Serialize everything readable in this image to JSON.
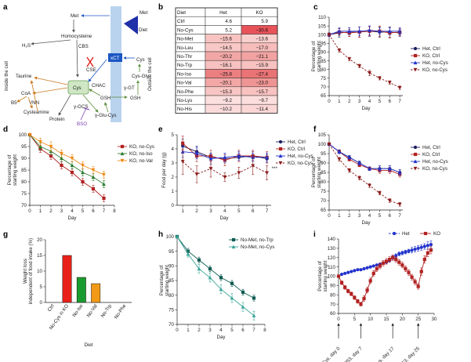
{
  "panel_letters": [
    "a",
    "b",
    "c",
    "d",
    "e",
    "f",
    "g",
    "h",
    "i"
  ],
  "diagram_a": {
    "side_inside": "Inside the cell",
    "side_outside": "Outside the cell",
    "nodes": {
      "met": "Met",
      "diet": "Diet",
      "met_out": "Met",
      "homocysteine": "Homocysteine",
      "cbs": "CBS",
      "h2s": "H₂S",
      "xct": "xCT",
      "cse": "CSE",
      "cys_out": "Cys",
      "cys_gly": "Cys-Gly",
      "taurine": "Taurine",
      "chac": "CHAC",
      "cys": "Cys",
      "gamma_gt": "γ-GT",
      "coa": "CoA",
      "b5": "B5",
      "vnn": "VNN",
      "gsh": "GSH",
      "gsh_out": "GSH",
      "cysteamine": "Cysteamine",
      "gamma_gcs": "γ-GCS",
      "protein": "Protein",
      "bso": "BSO",
      "glu_cys": "γ-Glu-Cys"
    }
  },
  "table_b": {
    "headers": [
      "Diet",
      "Het",
      "KO"
    ],
    "rows": [
      {
        "diet": "Ctrl",
        "het": "4.6",
        "ko": "5.9",
        "het_color": "#ffffff",
        "ko_color": "#ffffff"
      },
      {
        "diet": "No-Cys",
        "het": "5.2",
        "ko": "−30.6",
        "het_color": "#ffffff",
        "ko_color": "#e8535a"
      },
      {
        "diet": "No-Met",
        "het": "−15.6",
        "ko": "−13.6",
        "het_color": "#f7c4c2",
        "ko_color": "#f9d0ce"
      },
      {
        "diet": "No-Leu",
        "het": "−14.5",
        "ko": "−17.0",
        "het_color": "#f8c8c6",
        "ko_color": "#f6bdbb"
      },
      {
        "diet": "No-Thr",
        "het": "−20.2",
        "ko": "−21.1",
        "het_color": "#f2a7a6",
        "ko_color": "#f1a2a1"
      },
      {
        "diet": "No-Trp",
        "het": "−16.1",
        "ko": "−15.9",
        "het_color": "#f6c1bf",
        "ko_color": "#f7c2c0"
      },
      {
        "diet": "No-Iso",
        "het": "−25.8",
        "ko": "−27.4",
        "het_color": "#ec7f80",
        "ko_color": "#ea7375"
      },
      {
        "diet": "No-Val",
        "het": "−20.1",
        "ko": "−23.0",
        "het_color": "#f2a7a6",
        "ko_color": "#ef9494"
      },
      {
        "diet": "No-Phe",
        "het": "−15.3",
        "ko": "−15.7",
        "het_color": "#f7c5c3",
        "ko_color": "#f7c2c0"
      },
      {
        "diet": "No-Lys",
        "het": "−9.2",
        "ko": "−9.7",
        "het_color": "#fbe0df",
        "ko_color": "#fbdedd"
      },
      {
        "diet": "No-His",
        "het": "−10.2",
        "ko": "−11.4",
        "het_color": "#fbdbda",
        "ko_color": "#fad6d5"
      }
    ]
  },
  "chart_data": [
    {
      "id": "c",
      "type": "line",
      "xlabel": "Day",
      "ylabel": "Percentage of starting weight",
      "xlim": [
        0,
        7.3
      ],
      "ylim": [
        65,
        110
      ],
      "xticks": [
        0,
        1,
        2,
        3,
        4,
        5,
        6,
        7
      ],
      "yticks": [
        65,
        70,
        75,
        80,
        85,
        90,
        95,
        100,
        105,
        110
      ],
      "x": [
        0,
        1,
        2,
        3,
        4,
        5,
        6,
        7
      ],
      "series": [
        {
          "name": "Het, Ctrl",
          "color": "#1c1f5e",
          "marker": "circle",
          "dash": false,
          "values": [
            100,
            101,
            101.5,
            101.5,
            102,
            101.5,
            101.5,
            101
          ],
          "err": [
            1,
            2.5,
            2.5,
            3,
            3,
            3,
            3,
            2
          ]
        },
        {
          "name": "KO, Ctrl",
          "color": "#b22222",
          "marker": "square",
          "dash": false,
          "values": [
            100,
            101.5,
            101,
            101.5,
            102,
            102,
            101,
            101.5
          ],
          "err": [
            1,
            2,
            2,
            3,
            2.5,
            3,
            3,
            2
          ]
        },
        {
          "name": "Het, no-Cys",
          "color": "#2233cc",
          "marker": "triangle",
          "dash": false,
          "values": [
            100,
            102,
            102,
            102,
            102.5,
            102,
            102,
            102
          ],
          "err": [
            1,
            2,
            2,
            2.5,
            2.5,
            2,
            2,
            2
          ]
        },
        {
          "name": "KO, no-Cys",
          "color": "#8b1a1a",
          "marker": "triangle-down",
          "dash": true,
          "values": [
            100,
            91,
            86,
            82,
            78,
            75,
            72.5,
            69.5
          ],
          "err": [
            0.5,
            1,
            1,
            1,
            1.5,
            1,
            1,
            1
          ]
        }
      ],
      "legend": "right"
    },
    {
      "id": "d",
      "type": "line",
      "xlabel": "Day",
      "ylabel": "Percentage of starting weight",
      "xlim": [
        0,
        8
      ],
      "ylim": [
        70,
        100
      ],
      "xticks": [
        0,
        1,
        2,
        3,
        4,
        5,
        6,
        7,
        8
      ],
      "yticks": [
        70,
        75,
        80,
        85,
        90,
        95,
        100
      ],
      "x": [
        0,
        1,
        2,
        3,
        4,
        5,
        6,
        7
      ],
      "series": [
        {
          "name": "KO, no-Cys",
          "color": "#b22222",
          "marker": "square",
          "dash": false,
          "values": [
            100,
            94,
            91,
            87,
            84,
            80,
            77,
            73
          ],
          "err": [
            0.5,
            1.5,
            1.5,
            1.5,
            1.5,
            1.5,
            1.5,
            1.5
          ]
        },
        {
          "name": "KO, no-Iso",
          "color": "#2e7d32",
          "marker": "triangle",
          "dash": false,
          "values": [
            100,
            95,
            93,
            90,
            87,
            84,
            82,
            79
          ],
          "err": [
            0.5,
            1.5,
            1.5,
            1.5,
            1.5,
            1.5,
            1.5,
            1.5
          ]
        },
        {
          "name": "KO, no-Val",
          "color": "#ef8a17",
          "marker": "triangle-down",
          "dash": false,
          "values": [
            100,
            97,
            95,
            92,
            90,
            87,
            85,
            83
          ],
          "err": [
            0.5,
            1.5,
            2,
            1.5,
            1.5,
            1.5,
            1.5,
            1.5
          ]
        }
      ],
      "legend": "right"
    },
    {
      "id": "e",
      "type": "line",
      "xlabel": "Day",
      "ylabel": "Food per day (g)",
      "xlim": [
        0.6,
        7.3
      ],
      "ylim": [
        0,
        5
      ],
      "xticks": [
        1,
        2,
        3,
        4,
        5,
        6,
        7
      ],
      "yticks": [
        0,
        1,
        2,
        3,
        4,
        5
      ],
      "x": [
        1,
        2,
        3,
        4,
        5,
        6,
        7
      ],
      "annotation": "***",
      "series": [
        {
          "name": "Het, Ctrl",
          "color": "#1c1f5e",
          "marker": "circle",
          "dash": false,
          "values": [
            4.2,
            3.8,
            3.4,
            3.3,
            3.4,
            3.5,
            3.3
          ],
          "err": [
            0.5,
            0.4,
            0.3,
            0.3,
            0.3,
            0.3,
            0.3
          ]
        },
        {
          "name": "KO, Ctrl",
          "color": "#b22222",
          "marker": "square",
          "dash": false,
          "values": [
            4.4,
            3.5,
            3.5,
            3.2,
            3.5,
            3.5,
            3.4
          ],
          "err": [
            0.5,
            0.4,
            0.4,
            0.4,
            0.4,
            0.4,
            0.4
          ]
        },
        {
          "name": "Het, no-Cys",
          "color": "#2233cc",
          "marker": "triangle",
          "dash": false,
          "values": [
            3.8,
            3.7,
            3.3,
            3.4,
            3.5,
            3.4,
            3.4
          ],
          "err": [
            0.4,
            0.4,
            0.4,
            0.3,
            0.3,
            0.3,
            0.3
          ]
        },
        {
          "name": "KO, no-Cys",
          "color": "#8b1a1a",
          "marker": "triangle-down",
          "dash": true,
          "values": [
            3.1,
            2.2,
            2.6,
            2.0,
            2.3,
            2.8,
            2.3
          ],
          "err": [
            0.9,
            0.6,
            0.6,
            0.3,
            0.4,
            0.6,
            0.5
          ]
        }
      ],
      "legend": "right"
    },
    {
      "id": "f",
      "type": "line",
      "xlabel": "Day",
      "ylabel": "Percentage of starting weight",
      "xlim": [
        0,
        7.3
      ],
      "ylim": [
        65,
        105
      ],
      "xticks": [
        0,
        1,
        2,
        3,
        4,
        5,
        6,
        7
      ],
      "yticks": [
        65,
        70,
        75,
        80,
        85,
        90,
        95,
        100,
        105
      ],
      "x": [
        0,
        1,
        2,
        3,
        4,
        5,
        6,
        7
      ],
      "series": [
        {
          "name": "Het, Ctrl",
          "color": "#1c1f5e",
          "marker": "circle",
          "dash": false,
          "values": [
            100,
            96,
            93,
            90,
            87,
            87,
            87,
            85
          ],
          "err": [
            0.5,
            1,
            1,
            1,
            1,
            1.5,
            1.5,
            1.5
          ]
        },
        {
          "name": "KO, Ctrl",
          "color": "#b22222",
          "marker": "square",
          "dash": false,
          "values": [
            100,
            96,
            92,
            89,
            87,
            86,
            86,
            84
          ],
          "err": [
            0.5,
            1,
            1,
            1,
            1,
            1.5,
            1.5,
            1.5
          ]
        },
        {
          "name": "Het, no-Cys",
          "color": "#2233cc",
          "marker": "triangle",
          "dash": false,
          "values": [
            100,
            96,
            93,
            90,
            87,
            87,
            87,
            85
          ],
          "err": [
            0.5,
            1,
            1,
            1,
            1,
            1.5,
            1.5,
            1.5
          ]
        },
        {
          "name": "KO, no-Cys",
          "color": "#8b1a1a",
          "marker": "triangle-down",
          "dash": true,
          "values": [
            100,
            92,
            86,
            82,
            78,
            74,
            70,
            68
          ],
          "err": [
            0.5,
            1,
            1,
            1,
            1,
            1,
            1,
            1
          ]
        }
      ],
      "legend": "right"
    },
    {
      "id": "g",
      "type": "bar",
      "xlabel": "Diet",
      "ylabel": "Weight loss independent of food intake (%)",
      "ylim": [
        0,
        20
      ],
      "yticks": [
        0,
        5,
        10,
        15,
        20
      ],
      "categories": [
        "Ctrl",
        "No-Cys in KO",
        "No-Iso",
        "No-Val",
        "No-Trp",
        "No-Phe"
      ],
      "values": [
        0,
        15,
        8,
        6,
        0,
        0
      ],
      "colors": [
        "#ffffff",
        "#e8211b",
        "#1a9b2f",
        "#f29a16",
        "#ffffff",
        "#ffffff"
      ]
    },
    {
      "id": "h",
      "type": "line",
      "xlabel": "Day",
      "ylabel": "Percentage of starting weight",
      "xlim": [
        0,
        8
      ],
      "ylim": [
        70,
        100
      ],
      "xticks": [
        0,
        1,
        2,
        3,
        4,
        5,
        6,
        7,
        8
      ],
      "yticks": [
        70,
        75,
        80,
        85,
        90,
        95,
        100
      ],
      "x": [
        0,
        1,
        2,
        3,
        4,
        5,
        6,
        7
      ],
      "series": [
        {
          "name": "No-Met, no-Trp",
          "color": "#0e5c52",
          "marker": "square",
          "dash": false,
          "values": [
            100,
            95,
            92,
            89,
            86,
            84,
            81,
            79
          ],
          "err": [
            0.5,
            1,
            1,
            1,
            1,
            1,
            1,
            1
          ]
        },
        {
          "name": "No-Met, no-Cys",
          "color": "#3aa69a",
          "marker": "triangle",
          "dash": false,
          "values": [
            100,
            94,
            89,
            86,
            82,
            79,
            76,
            73
          ],
          "err": [
            0.5,
            1,
            1.5,
            1.5,
            1.5,
            1.5,
            1.5,
            1.5
          ]
        }
      ],
      "legend": "top-right"
    },
    {
      "id": "i",
      "type": "line",
      "xlabel": "",
      "ylabel": "Percentage of starting weight",
      "xlim": [
        0,
        30
      ],
      "ylim": [
        60,
        140
      ],
      "xticks": [
        0,
        5,
        10,
        15,
        20,
        25,
        30
      ],
      "yticks": [
        60,
        70,
        80,
        90,
        100,
        110,
        120,
        130,
        140
      ],
      "annotations": [
        "No-Cys, day 0",
        "5053, day 7",
        "No-Cys, day 17",
        "5053, day 25"
      ],
      "annotation_days": [
        0,
        7,
        17,
        25
      ],
      "series": [
        {
          "name": "Het",
          "color": "#2233cc",
          "marker": "circle",
          "dash": true,
          "x": [
            0,
            1,
            2,
            3,
            4,
            5,
            6,
            7,
            8,
            9,
            10,
            11,
            12,
            13,
            14,
            15,
            16,
            17,
            18,
            19,
            20,
            21,
            22,
            23,
            24,
            25,
            26,
            27,
            28,
            29
          ],
          "values": [
            100,
            102,
            103,
            104,
            105,
            106,
            107,
            107,
            108,
            109,
            110,
            111,
            112,
            113,
            114,
            115,
            117,
            120,
            122,
            124,
            125,
            126,
            127,
            128,
            129,
            130,
            131,
            132,
            133,
            134
          ],
          "err": [
            1,
            1,
            1,
            1,
            1,
            1,
            1,
            1,
            1,
            1,
            1,
            1,
            1,
            1,
            1,
            1,
            2,
            2,
            2,
            2,
            2,
            2,
            2,
            3,
            3,
            3,
            3,
            3,
            4,
            4
          ]
        },
        {
          "name": "KO",
          "color": "#b22222",
          "marker": "square",
          "dash": false,
          "x": [
            0,
            1,
            2,
            3,
            4,
            5,
            6,
            7,
            8,
            9,
            10,
            11,
            12,
            13,
            14,
            15,
            16,
            17,
            18,
            19,
            20,
            21,
            22,
            23,
            24,
            25,
            26,
            27,
            28,
            29
          ],
          "values": [
            100,
            93,
            88,
            84,
            81,
            77,
            73,
            70,
            76,
            85,
            95,
            103,
            108,
            111,
            114,
            116,
            118,
            120,
            118,
            115,
            112,
            108,
            104,
            99,
            94,
            89,
            105,
            118,
            125,
            128
          ],
          "err": [
            1,
            2,
            2,
            2,
            2,
            2,
            2,
            2,
            3,
            3,
            3,
            3,
            3,
            3,
            3,
            3,
            3,
            3,
            3,
            3,
            3,
            3,
            3,
            3,
            3,
            3,
            4,
            4,
            4,
            4
          ]
        }
      ],
      "legend": "top"
    }
  ]
}
